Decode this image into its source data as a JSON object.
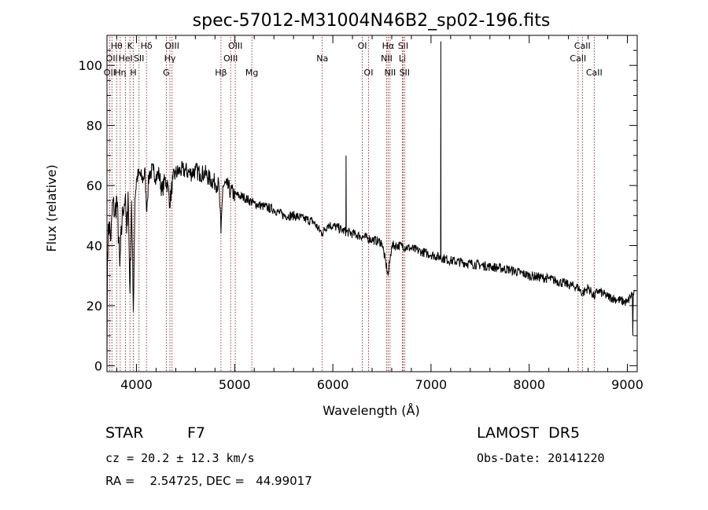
{
  "chart_data": {
    "type": "line",
    "title": "spec-57012-M31004N46B2_sp02-196.fits",
    "xlabel": "Wavelength (Å)",
    "ylabel": "Flux (relative)",
    "xlim": [
      3700,
      9100
    ],
    "ylim": [
      -2,
      110
    ],
    "xticks": [
      4000,
      5000,
      6000,
      7000,
      8000,
      9000
    ],
    "yticks": [
      0,
      20,
      40,
      60,
      80,
      100
    ],
    "grid": false,
    "line_color": "#000000",
    "marker_color": "#c00000",
    "continuum": [
      [
        3700,
        0
      ],
      [
        3705,
        38
      ],
      [
        3720,
        48
      ],
      [
        3740,
        42
      ],
      [
        3760,
        55
      ],
      [
        3780,
        50
      ],
      [
        3800,
        56
      ],
      [
        3830,
        33
      ],
      [
        3860,
        52
      ],
      [
        3885,
        56
      ],
      [
        3900,
        44
      ],
      [
        3915,
        58
      ],
      [
        3935,
        24
      ],
      [
        3950,
        55
      ],
      [
        3968,
        18
      ],
      [
        3985,
        56
      ],
      [
        4000,
        62
      ],
      [
        4030,
        64
      ],
      [
        4060,
        62
      ],
      [
        4090,
        64
      ],
      [
        4101,
        52
      ],
      [
        4130,
        64
      ],
      [
        4170,
        65
      ],
      [
        4200,
        63
      ],
      [
        4230,
        64
      ],
      [
        4260,
        58
      ],
      [
        4290,
        62
      ],
      [
        4320,
        60
      ],
      [
        4340,
        54
      ],
      [
        4370,
        62
      ],
      [
        4400,
        64
      ],
      [
        4450,
        65
      ],
      [
        4500,
        65
      ],
      [
        4550,
        64
      ],
      [
        4600,
        65
      ],
      [
        4650,
        64
      ],
      [
        4700,
        64
      ],
      [
        4750,
        62
      ],
      [
        4800,
        61
      ],
      [
        4840,
        60
      ],
      [
        4861,
        44
      ],
      [
        4880,
        60
      ],
      [
        4920,
        60
      ],
      [
        4960,
        58
      ],
      [
        5000,
        57
      ],
      [
        5100,
        56
      ],
      [
        5200,
        54
      ],
      [
        5300,
        53
      ],
      [
        5400,
        52
      ],
      [
        5500,
        50
      ],
      [
        5600,
        50
      ],
      [
        5700,
        49
      ],
      [
        5800,
        48
      ],
      [
        5890,
        44
      ],
      [
        5950,
        47
      ],
      [
        6050,
        46
      ],
      [
        6100,
        45
      ],
      [
        6200,
        44
      ],
      [
        6300,
        43
      ],
      [
        6400,
        42
      ],
      [
        6500,
        41
      ],
      [
        6563,
        30
      ],
      [
        6600,
        40
      ],
      [
        6700,
        40
      ],
      [
        6800,
        39
      ],
      [
        6900,
        38
      ],
      [
        7000,
        37
      ],
      [
        7200,
        35
      ],
      [
        7400,
        34
      ],
      [
        7600,
        33
      ],
      [
        7800,
        32
      ],
      [
        8000,
        30
      ],
      [
        8200,
        29
      ],
      [
        8400,
        27
      ],
      [
        8500,
        26
      ],
      [
        8542,
        24
      ],
      [
        8600,
        26
      ],
      [
        8662,
        23
      ],
      [
        8700,
        25
      ],
      [
        8800,
        23
      ],
      [
        8900,
        22
      ],
      [
        9000,
        21
      ],
      [
        9030,
        23
      ],
      [
        9050,
        24
      ],
      [
        9055,
        10
      ],
      [
        9060,
        24
      ],
      [
        9080,
        25
      ]
    ],
    "emission_spikes": [
      {
        "x": 6135,
        "peak": 70,
        "base": 46
      },
      {
        "x": 7100,
        "peak": 108,
        "base": 36
      }
    ],
    "line_markers": [
      {
        "x": 3727,
        "label": "OII",
        "row": 3
      },
      {
        "x": 3750,
        "label": "OII",
        "row": 2
      },
      {
        "x": 3798,
        "label": "Hθ",
        "row": 1
      },
      {
        "x": 3835,
        "label": "Hη",
        "row": 3
      },
      {
        "x": 3889,
        "label": "HeI",
        "row": 2
      },
      {
        "x": 3934,
        "label": "K",
        "row": 1
      },
      {
        "x": 3969,
        "label": "H",
        "row": 3
      },
      {
        "x": 4026,
        "label": "SII",
        "row": 2
      },
      {
        "x": 4102,
        "label": "Hδ",
        "row": 1
      },
      {
        "x": 4304,
        "label": "G",
        "row": 3
      },
      {
        "x": 4341,
        "label": "Hγ",
        "row": 2
      },
      {
        "x": 4363,
        "label": "OIII",
        "row": 1
      },
      {
        "x": 4861,
        "label": "Hβ",
        "row": 3
      },
      {
        "x": 4959,
        "label": "OIII",
        "row": 2
      },
      {
        "x": 5007,
        "label": "OIII",
        "row": 1
      },
      {
        "x": 5175,
        "label": "Mg",
        "row": 3
      },
      {
        "x": 5893,
        "label": "Na",
        "row": 2
      },
      {
        "x": 6300,
        "label": "OI",
        "row": 1
      },
      {
        "x": 6364,
        "label": "OI",
        "row": 3
      },
      {
        "x": 6548,
        "label": "NII",
        "row": 2
      },
      {
        "x": 6563,
        "label": "Hα",
        "row": 1
      },
      {
        "x": 6583,
        "label": "NII",
        "row": 3
      },
      {
        "x": 6708,
        "label": "Li",
        "row": 2
      },
      {
        "x": 6716,
        "label": "SII",
        "row": 1
      },
      {
        "x": 6731,
        "label": "SII",
        "row": 3
      },
      {
        "x": 8498,
        "label": "CaII",
        "row": 2
      },
      {
        "x": 8542,
        "label": "CaII",
        "row": 1
      },
      {
        "x": 8662,
        "label": "CaII",
        "row": 3
      }
    ]
  },
  "info": {
    "class": "STAR",
    "subclass": "F7",
    "survey": "LAMOST  DR5",
    "cz": "cz = 20.2 ± 12.3 km/s",
    "obs_date": "Obs-Date: 20141220",
    "coords": "RA =    2.54725, DEC =   44.99017"
  }
}
